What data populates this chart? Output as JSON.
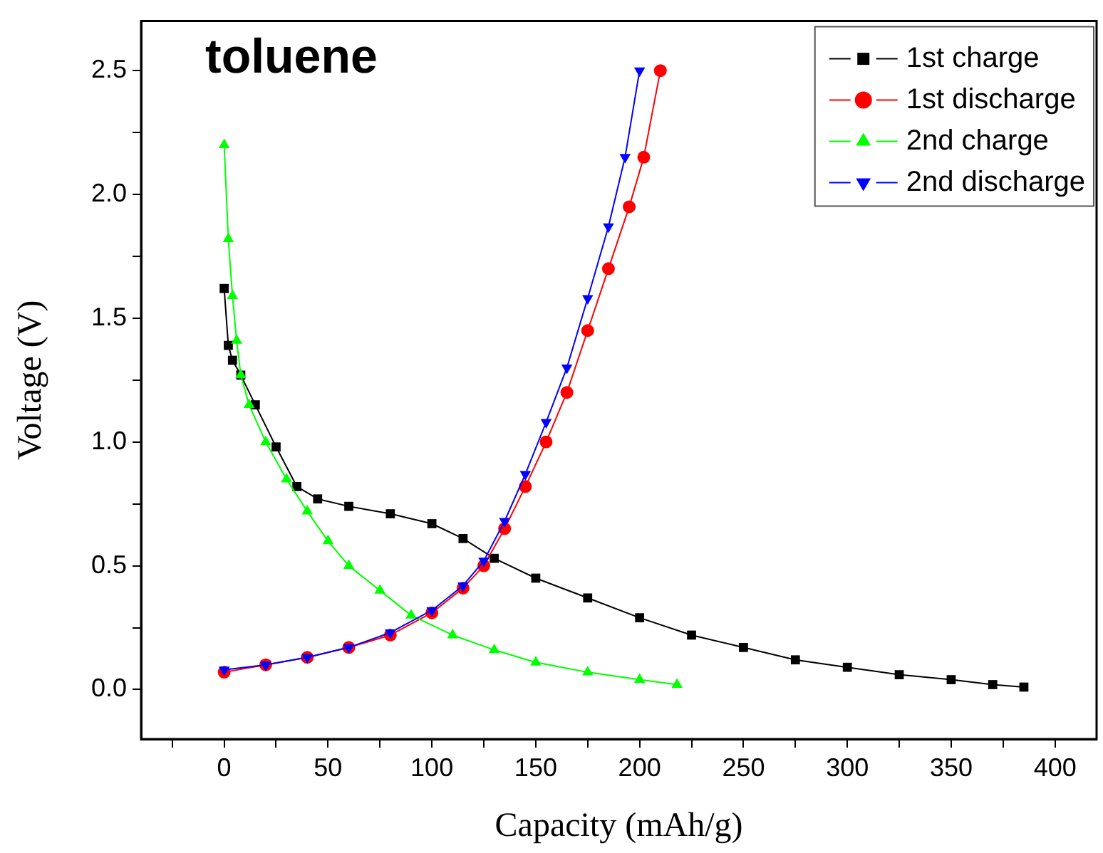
{
  "chart_data": {
    "type": "line",
    "title": "toluene",
    "xlabel": "Capacity (mAh/g)",
    "ylabel": "Voltage (V)",
    "xlim": [
      -40,
      420
    ],
    "ylim": [
      -0.2,
      2.7
    ],
    "xticks": [
      {
        "value": -25,
        "label": null
      },
      0,
      {
        "value": 25,
        "label": null
      },
      50,
      {
        "value": 75,
        "label": null
      },
      100,
      {
        "value": 125,
        "label": null
      },
      150,
      {
        "value": 175,
        "label": null
      },
      200,
      {
        "value": 225,
        "label": null
      },
      250,
      {
        "value": 275,
        "label": null
      },
      300,
      {
        "value": 325,
        "label": null
      },
      350,
      {
        "value": 375,
        "label": null
      },
      400
    ],
    "yticks": [
      {
        "value": 0,
        "label": "0.0"
      },
      {
        "value": 0.25,
        "label": null
      },
      0.5,
      {
        "value": 0.75,
        "label": null
      },
      {
        "value": 1,
        "label": "1.0"
      },
      {
        "value": 1.25,
        "label": null
      },
      1.5,
      {
        "value": 1.75,
        "label": null
      },
      {
        "value": 2,
        "label": "2.0"
      },
      {
        "value": 2.25,
        "label": null
      },
      2.5
    ],
    "grid": false,
    "legend": "top right",
    "line_style": "solid",
    "series": [
      {
        "name": "1st charge",
        "color": "#000000",
        "marker": "square",
        "x": [
          0,
          2,
          4,
          8,
          15,
          25,
          35,
          45,
          60,
          80,
          100,
          115,
          130,
          150,
          175,
          200,
          225,
          250,
          275,
          300,
          325,
          350,
          370,
          385
        ],
        "values": [
          1.62,
          1.39,
          1.33,
          1.27,
          1.15,
          0.98,
          0.82,
          0.77,
          0.74,
          0.71,
          0.67,
          0.61,
          0.53,
          0.45,
          0.37,
          0.29,
          0.22,
          0.17,
          0.12,
          0.09,
          0.06,
          0.04,
          0.02,
          0.01
        ]
      },
      {
        "name": "1st discharge",
        "color": "#ff0000",
        "marker": "circle",
        "x": [
          0,
          20,
          40,
          60,
          80,
          100,
          115,
          125,
          135,
          145,
          155,
          165,
          175,
          185,
          195,
          202,
          210
        ],
        "values": [
          0.07,
          0.1,
          0.13,
          0.17,
          0.22,
          0.31,
          0.41,
          0.5,
          0.65,
          0.82,
          1.0,
          1.2,
          1.45,
          1.7,
          1.95,
          2.15,
          2.5
        ]
      },
      {
        "name": "2nd charge",
        "color": "#00ff00",
        "marker": "triangle",
        "x": [
          0,
          2,
          4,
          6,
          8,
          12,
          20,
          30,
          40,
          50,
          60,
          75,
          90,
          110,
          130,
          150,
          175,
          200,
          218
        ],
        "values": [
          2.2,
          1.82,
          1.59,
          1.41,
          1.27,
          1.15,
          1.0,
          0.85,
          0.72,
          0.6,
          0.5,
          0.4,
          0.3,
          0.22,
          0.16,
          0.11,
          0.07,
          0.04,
          0.02
        ]
      },
      {
        "name": "2nd discharge",
        "color": "#0000ff",
        "marker": "triangle-down",
        "x": [
          0,
          20,
          40,
          60,
          80,
          100,
          115,
          125,
          135,
          145,
          155,
          165,
          175,
          185,
          193,
          200
        ],
        "values": [
          0.08,
          0.1,
          0.13,
          0.17,
          0.23,
          0.32,
          0.42,
          0.52,
          0.68,
          0.87,
          1.08,
          1.3,
          1.58,
          1.87,
          2.15,
          2.5
        ]
      }
    ]
  }
}
